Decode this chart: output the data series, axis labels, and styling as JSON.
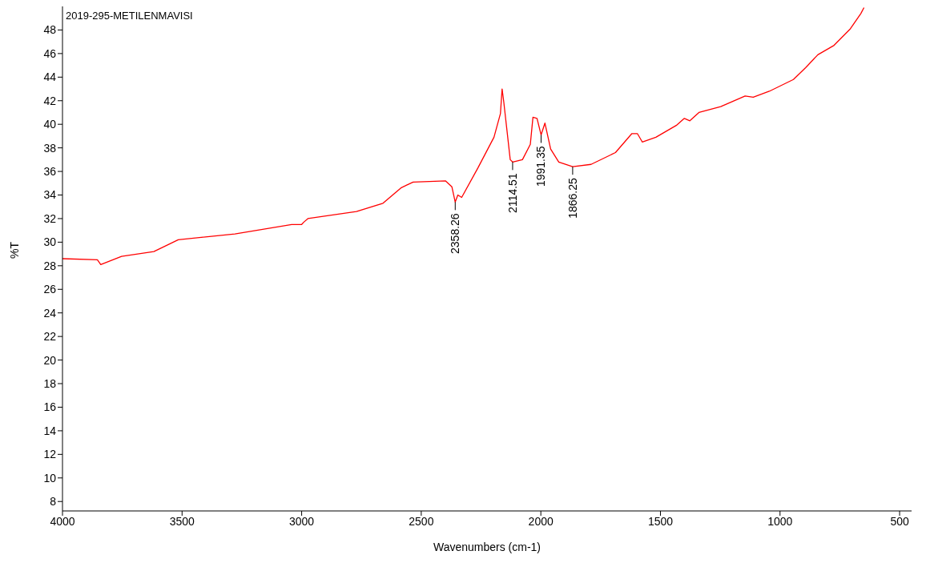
{
  "chart_data": {
    "type": "line",
    "title": "2019-295-METILENMAVISI",
    "xlabel": "Wavenumbers (cm-1)",
    "ylabel": "%T",
    "x": [
      4000,
      3854,
      3840,
      3753,
      3618,
      3516,
      3279,
      3042,
      3000,
      2991,
      2974,
      2771,
      2660,
      2585,
      2534,
      2399,
      2372,
      2358,
      2347,
      2331,
      2263,
      2196,
      2169,
      2162,
      2155,
      2128,
      2118,
      2077,
      2044,
      2033,
      2016,
      1999,
      1983,
      1959,
      1925,
      1867,
      1790,
      1688,
      1620,
      1596,
      1576,
      1519,
      1434,
      1400,
      1377,
      1339,
      1248,
      1146,
      1112,
      1045,
      944,
      893,
      842,
      774,
      706,
      662,
      649
    ],
    "series": [
      {
        "color": "#ff0000",
        "values": [
          28.6,
          28.5,
          28.1,
          28.8,
          29.2,
          30.2,
          30.7,
          31.5,
          31.5,
          31.7,
          32.0,
          32.6,
          33.3,
          34.6,
          35.1,
          35.2,
          34.7,
          33.4,
          34.0,
          33.8,
          36.3,
          38.9,
          40.9,
          43.0,
          41.9,
          37.0,
          36.8,
          37.0,
          38.3,
          40.6,
          40.5,
          39.1,
          40.1,
          37.9,
          36.8,
          36.4,
          36.6,
          37.6,
          39.2,
          39.2,
          38.5,
          38.9,
          39.9,
          40.5,
          40.3,
          41.0,
          41.5,
          42.4,
          42.3,
          42.8,
          43.8,
          44.8,
          45.9,
          46.7,
          48.1,
          49.4,
          49.9
        ]
      }
    ],
    "annotations": [
      {
        "text": "2358.26",
        "x": 2358,
        "y": 33.4
      },
      {
        "text": "2114.51",
        "x": 2118,
        "y": 36.8
      },
      {
        "text": "1991.35",
        "x": 1999,
        "y": 39.1
      },
      {
        "text": "1866.25",
        "x": 1867,
        "y": 36.4
      }
    ],
    "xlim": [
      4000,
      450
    ],
    "ylim": [
      7.2,
      50
    ],
    "xticks": [
      4000,
      3500,
      3000,
      2500,
      2000,
      1500,
      1000,
      500
    ],
    "yticks": [
      8,
      10,
      12,
      14,
      16,
      18,
      20,
      22,
      24,
      26,
      28,
      30,
      32,
      34,
      36,
      38,
      40,
      42,
      44,
      46,
      48
    ],
    "grid": false,
    "legend": false,
    "marker": "none",
    "line_style": "solid"
  }
}
